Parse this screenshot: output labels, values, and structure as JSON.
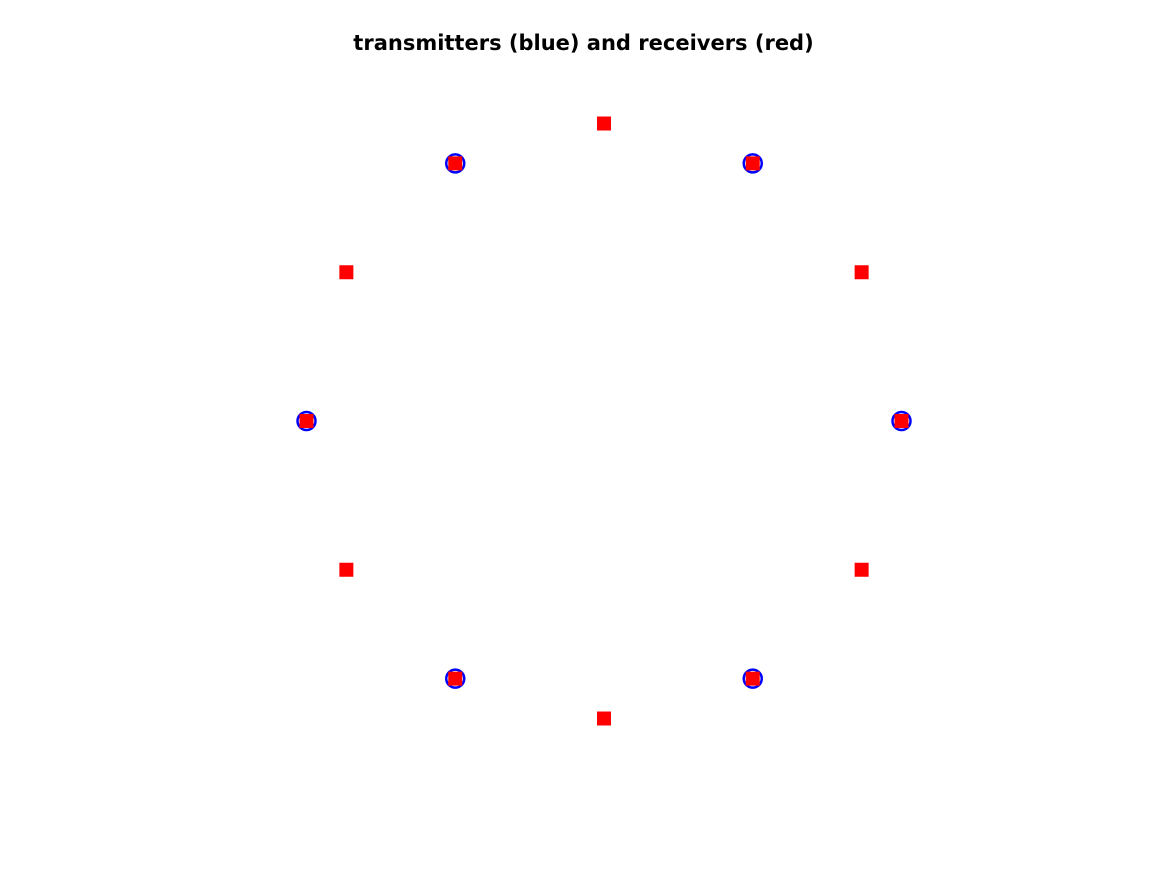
{
  "chart_data": {
    "type": "scatter",
    "title": "transmitters (blue) and receivers (red)",
    "xlabel": "",
    "ylabel": "",
    "axis": "off",
    "grid": false,
    "aspect": "equal",
    "xlim": [
      -1,
      1
    ],
    "ylim": [
      -1,
      1
    ],
    "series": [
      {
        "name": "transmitters",
        "color": "#0000ff",
        "marker": "circle",
        "x": [
          1.0,
          0.5,
          -0.5,
          -1.0,
          -0.5,
          0.5
        ],
        "y": [
          0.0,
          0.866,
          0.866,
          0.0,
          -0.866,
          -0.866
        ]
      },
      {
        "name": "receivers",
        "color": "#ff0000",
        "marker": "square",
        "x": [
          1.0,
          0.866,
          0.5,
          0.0,
          -0.5,
          -0.866,
          -1.0,
          -0.866,
          -0.5,
          0.0,
          0.5,
          0.866
        ],
        "y": [
          0.0,
          0.5,
          0.866,
          1.0,
          0.866,
          0.5,
          0.0,
          -0.5,
          -0.866,
          -1.0,
          -0.866,
          -0.5
        ]
      }
    ]
  }
}
